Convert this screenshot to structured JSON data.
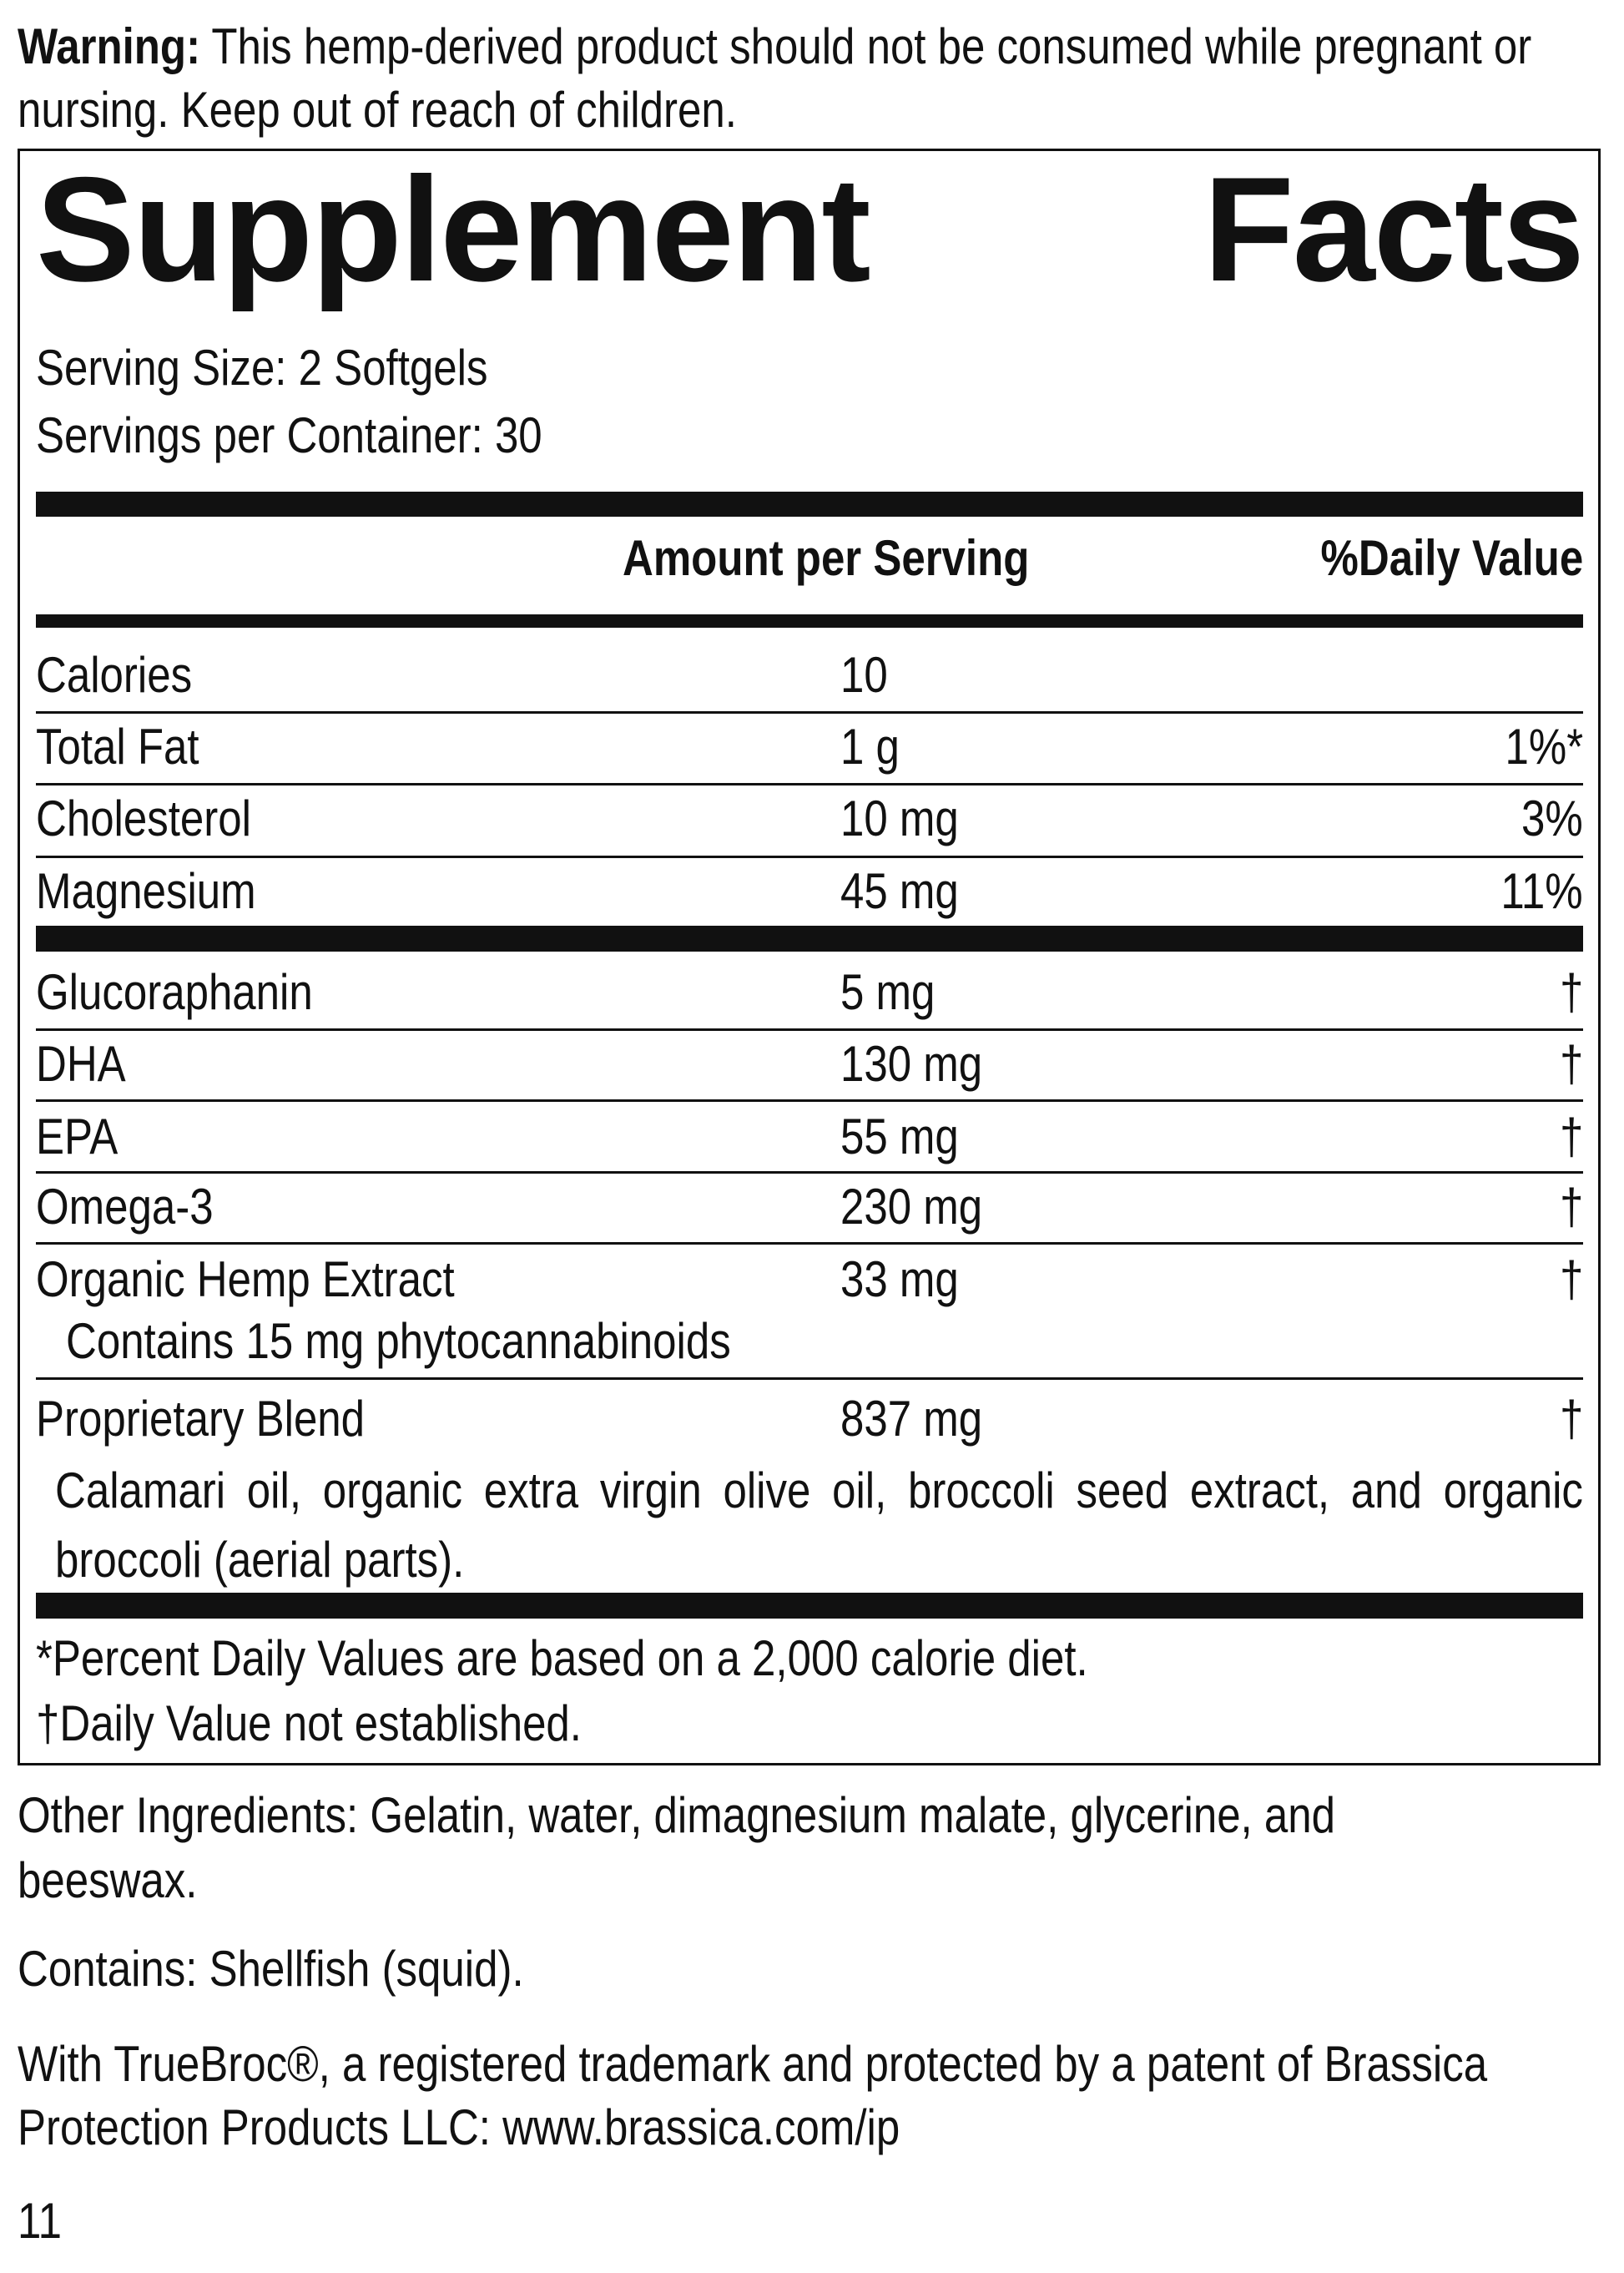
{
  "warning": {
    "label": "Warning:",
    "text": "This hemp-derived product should not be consumed while pregnant or nursing. Keep out of reach of children."
  },
  "title": "Supplement Facts",
  "serving_size": "Serving Size: 2 Softgels",
  "servings_per_container": "Servings per Container: 30",
  "table": {
    "headers": [
      "Amount per Serving",
      "%Daily Value"
    ],
    "rows": [
      {
        "name": "Calories",
        "amount": "10",
        "daily_value": null
      },
      {
        "name": "Total Fat",
        "amount": "1 g",
        "daily_value": "1%*"
      },
      {
        "name": "Cholesterol",
        "amount": "10 mg",
        "daily_value": "3%"
      },
      {
        "name": "Magnesium",
        "amount": "45 mg",
        "daily_value": "11%"
      },
      {
        "name": "Glucoraphanin",
        "amount": "5 mg",
        "daily_value": "†"
      },
      {
        "name": "DHA",
        "amount": "130 mg",
        "daily_value": "†"
      },
      {
        "name": "EPA",
        "amount": "55 mg",
        "daily_value": "†"
      },
      {
        "name": "Omega-3",
        "amount": "230 mg",
        "daily_value": "†"
      },
      {
        "name": "Organic Hemp Extract",
        "amount": "33 mg",
        "daily_value": "†",
        "note": "Contains 15 mg phytocannabinoids"
      },
      {
        "name": "Proprietary Blend",
        "amount": "837 mg",
        "daily_value": "†",
        "note": "Calamari oil, organic extra virgin olive oil, broccoli seed extract, and organic broccoli (aerial parts)."
      }
    ],
    "footnotes": [
      "*Percent Daily Values are based on a 2,000 calorie diet.",
      "†Daily Value not established."
    ]
  },
  "other_ingredients": "Other Ingredients: Gelatin, water, dimagnesium malate, glycerine, and beeswax.",
  "contains": "Contains: Shellfish (squid).",
  "trademark": "With TrueBroc®, a registered trademark and protected by a patent of Brassica Protection Products LLC: www.brassica.com/ip",
  "page_number": "11"
}
